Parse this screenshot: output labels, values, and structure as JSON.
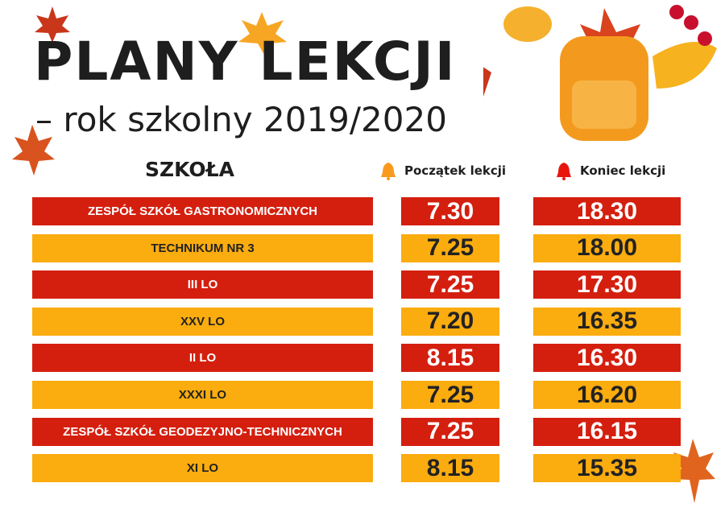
{
  "header": {
    "title": "PLANY LEKCJI",
    "subtitle": "– rok szkolny 2019/2020"
  },
  "columns": {
    "school": "SZKOŁA",
    "start": "Początek lekcji",
    "end": "Koniec lekcji",
    "start_icon": "bell-orange-icon",
    "end_icon": "bell-red-icon"
  },
  "colors": {
    "red": "#d41f0f",
    "orange": "#fbac0f"
  },
  "rows": [
    {
      "school": "ZESPÓŁ SZKÓŁ GASTRONOMICZNYCH",
      "start": "7.30",
      "end": "18.30"
    },
    {
      "school": "TECHNIKUM NR 3",
      "start": "7.25",
      "end": "18.00"
    },
    {
      "school": "III LO",
      "start": "7.25",
      "end": "17.30"
    },
    {
      "school": "XXV LO",
      "start": "7.20",
      "end": "16.35"
    },
    {
      "school": "II LO",
      "start": "8.15",
      "end": "16.30"
    },
    {
      "school": "XXXI LO",
      "start": "7.25",
      "end": "16.20"
    },
    {
      "school": "ZESPÓŁ SZKÓŁ GEODEZYJNO-TECHNICZNYCH",
      "start": "7.25",
      "end": "16.15"
    },
    {
      "school": "XI LO",
      "start": "8.15",
      "end": "15.35"
    }
  ]
}
